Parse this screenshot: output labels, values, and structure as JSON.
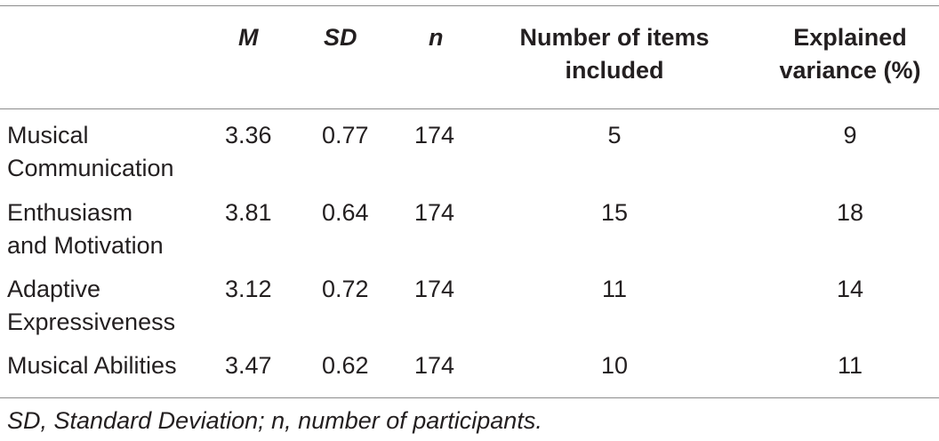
{
  "table": {
    "headers": {
      "m": "M",
      "sd": "SD",
      "n": "n",
      "items": [
        "Number of items",
        "included"
      ],
      "variance": [
        "Explained",
        "variance (%)"
      ]
    },
    "rows": [
      {
        "name": [
          "Musical",
          "Communication"
        ],
        "m": "3.36",
        "sd": "0.77",
        "n": "174",
        "items": "5",
        "variance": "9"
      },
      {
        "name": [
          "Enthusiasm",
          "and Motivation"
        ],
        "m": "3.81",
        "sd": "0.64",
        "n": "174",
        "items": "15",
        "variance": "18"
      },
      {
        "name": [
          "Adaptive",
          "Expressiveness"
        ],
        "m": "3.12",
        "sd": "0.72",
        "n": "174",
        "items": "11",
        "variance": "14"
      },
      {
        "name": [
          "Musical Abilities"
        ],
        "m": "3.47",
        "sd": "0.62",
        "n": "174",
        "items": "10",
        "variance": "11"
      }
    ]
  },
  "footnote": "SD, Standard Deviation; n, number of participants."
}
